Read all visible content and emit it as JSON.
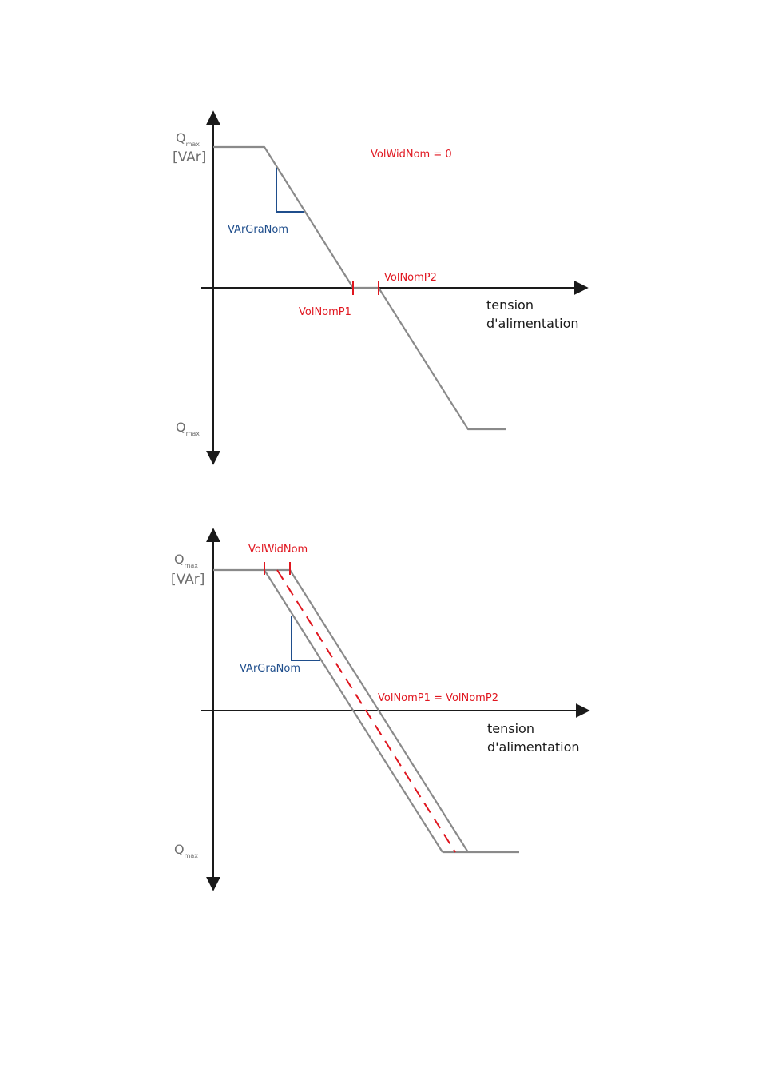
{
  "diagram_top": {
    "qmax_upper": {
      "main": "Q",
      "sub": "max"
    },
    "unit": "[VAr]",
    "qmax_lower": {
      "main": "Q",
      "sub": "max"
    },
    "gradient_label": "VArGraNom",
    "width_note": "VolWidNom = 0",
    "p1_label": "VolNomP1",
    "p2_label": "VolNomP2",
    "x_axis_line1": "tension",
    "x_axis_line2": "d'alimentation"
  },
  "diagram_bottom": {
    "qmax_upper": {
      "main": "Q",
      "sub": "max"
    },
    "unit": "[VAr]",
    "qmax_lower": {
      "main": "Q",
      "sub": "max"
    },
    "gradient_label": "VArGraNom",
    "width_label": "VolWidNom",
    "p_label": "VolNomP1 = VolNomP2",
    "x_axis_line1": "tension",
    "x_axis_line2": "d'alimentation"
  },
  "colors": {
    "curve": "#8a8a8a",
    "axis": "#1a1a1a",
    "accent_red": "#e0161f",
    "accent_blue": "#1f4e8c"
  }
}
